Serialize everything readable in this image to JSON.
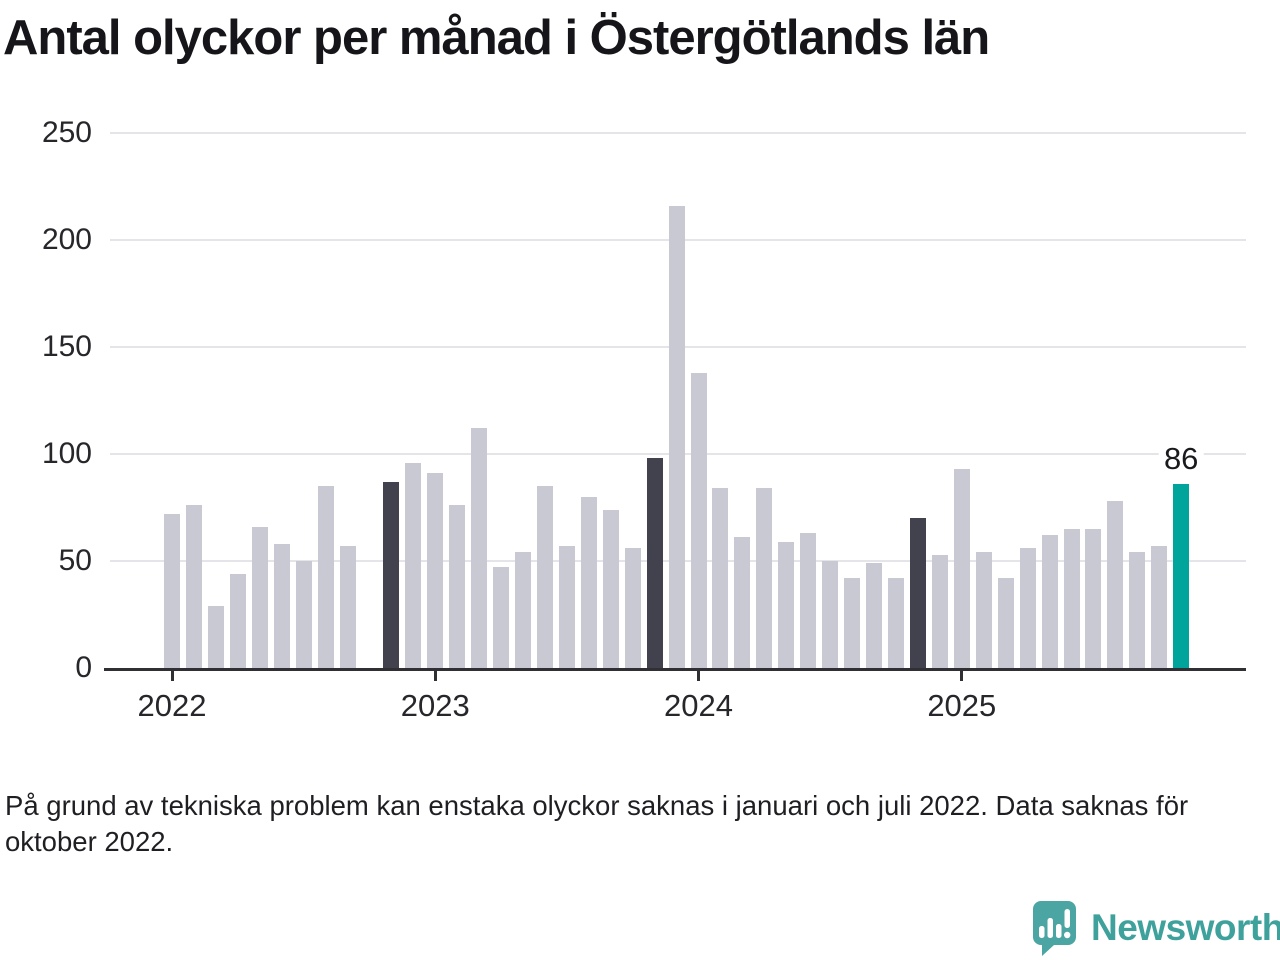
{
  "title": "Antal olyckor per månad i Östergötlands län",
  "footnote": "På grund av tekniska problem kan enstaka olyckor saknas i januari och juli 2022. Data saknas för oktober 2022.",
  "branding": {
    "name": "Newsworthy",
    "icon": "newsworthy-speech-bubble-chart-icon",
    "color": "#3fa19c"
  },
  "chart_data": {
    "type": "bar",
    "title": "Antal olyckor per månad i Östergötlands län",
    "xlabel": "",
    "ylabel": "",
    "ylim": [
      0,
      250
    ],
    "y_ticks": [
      0,
      50,
      100,
      150,
      200,
      250
    ],
    "x_tick_labels": [
      "2022",
      "2023",
      "2024",
      "2025"
    ],
    "grid": "horizontal",
    "legend": "none",
    "series_by_year": [
      {
        "year": "2022",
        "values": [
          72,
          76,
          29,
          44,
          66,
          58,
          50,
          85,
          57,
          null,
          87,
          96
        ]
      },
      {
        "year": "2023",
        "values": [
          91,
          76,
          112,
          47,
          54,
          85,
          57,
          80,
          74,
          56,
          98,
          216
        ]
      },
      {
        "year": "2024",
        "values": [
          138,
          84,
          61,
          84,
          59,
          63,
          50,
          42,
          49,
          42,
          70,
          53
        ]
      },
      {
        "year": "2025",
        "values": [
          93,
          54,
          42,
          56,
          62,
          65,
          65,
          78,
          54,
          57,
          86
        ]
      }
    ],
    "missing_months": [
      "2022-10"
    ],
    "dark_months": [
      "2022-11",
      "2023-11",
      "2024-11"
    ],
    "accent_month": "2025-11",
    "annotation": {
      "label": "86",
      "month": "2025-11"
    },
    "colors": {
      "default": "#c9c9d3",
      "dark": "#42424e",
      "accent": "#00a49b"
    }
  }
}
